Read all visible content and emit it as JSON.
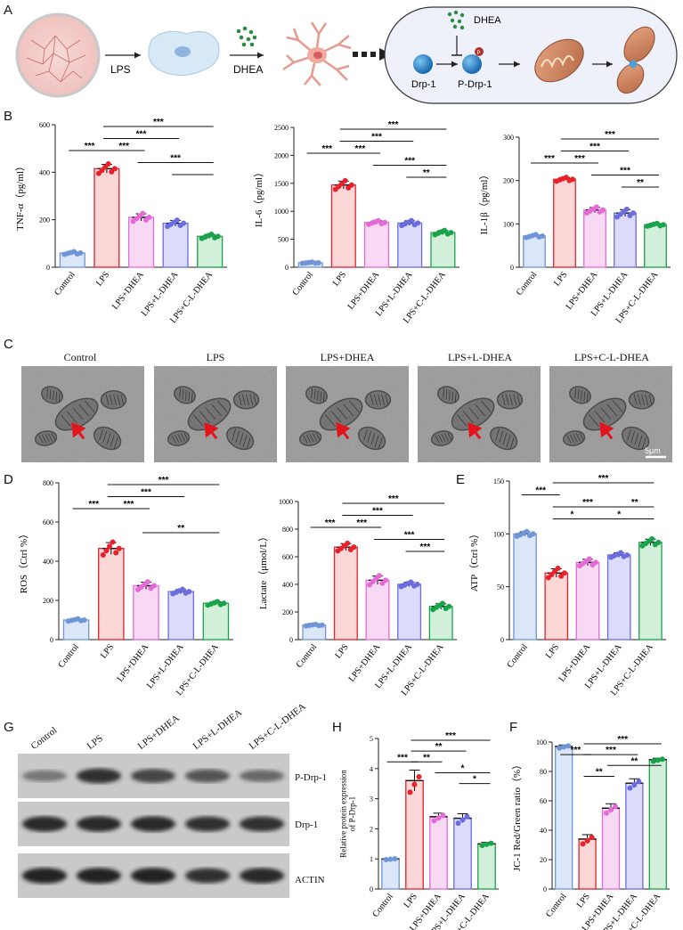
{
  "figure": {
    "panels": {
      "A": "A",
      "B": "B",
      "C": "C",
      "D": "D",
      "E": "E",
      "G": "G",
      "H": "H",
      "F": "F"
    },
    "colors": {
      "control": "#6f95d8",
      "lps": "#e8212b",
      "dhea": "#e56ad7",
      "ldhea": "#6b6ce0",
      "cldhea": "#19a34a"
    }
  },
  "schematic": {
    "lps": "LPS",
    "dhea": "DHEA",
    "dhea_inhibitor": "DHEA",
    "drp1": "Drp-1",
    "pdrp1": "P-Drp-1",
    "phospho": "P"
  },
  "groups": [
    "Control",
    "LPS",
    "LPS+DHEA",
    "LPS+L-DHEA",
    "LPS+C-L-DHEA"
  ],
  "chart_data": [
    {
      "id": "tnf",
      "type": "bar",
      "ylabel": "TNF-α（pg/ml）",
      "ylim": [
        0,
        600
      ],
      "yticks": [
        "0",
        "200",
        "400",
        "600"
      ],
      "categories": [
        "Control",
        "LPS",
        "LPS+DHEA",
        "LPS+L-DHEA",
        "LPS+C-L-DHEA"
      ],
      "values": [
        60,
        415,
        210,
        185,
        130
      ],
      "errors": [
        5,
        18,
        15,
        12,
        8
      ],
      "sig": [
        "***",
        "***",
        "***",
        "***",
        "***"
      ]
    },
    {
      "id": "il6",
      "type": "bar",
      "ylabel": "IL-6（pg/ml）",
      "ylim": [
        0,
        2500
      ],
      "yticks": [
        "0",
        "500",
        "1000",
        "1500",
        "2000",
        "2500"
      ],
      "categories": [
        "Control",
        "LPS",
        "LPS+DHEA",
        "LPS+L-DHEA",
        "LPS+C-L-DHEA"
      ],
      "values": [
        80,
        1470,
        800,
        790,
        620
      ],
      "errors": [
        10,
        70,
        30,
        40,
        35
      ],
      "sig": [
        "***",
        "***",
        "***",
        "***",
        "***",
        "**"
      ]
    },
    {
      "id": "il1b",
      "type": "bar",
      "ylabel": "IL-1β（pg/ml）",
      "ylim": [
        0,
        300
      ],
      "yticks": [
        "0",
        "100",
        "200",
        "300"
      ],
      "categories": [
        "Control",
        "LPS",
        "LPS+DHEA",
        "LPS+L-DHEA",
        "LPS+C-L-DHEA"
      ],
      "values": [
        72,
        203,
        132,
        125,
        98
      ],
      "errors": [
        3,
        4,
        6,
        8,
        3
      ],
      "sig": [
        "***",
        "***",
        "***",
        "***",
        "***",
        "**"
      ]
    },
    {
      "id": "ros",
      "type": "bar",
      "ylabel": "ROS（Ctrl %）",
      "ylim": [
        0,
        800
      ],
      "yticks": [
        "0",
        "200",
        "400",
        "600",
        "800"
      ],
      "categories": [
        "Control",
        "LPS",
        "LPS+DHEA",
        "LPS+L-DHEA",
        "LPS+C-L-DHEA"
      ],
      "values": [
        100,
        465,
        275,
        245,
        185
      ],
      "errors": [
        5,
        30,
        18,
        10,
        8
      ],
      "sig": [
        "***",
        "***",
        "***",
        "***",
        "**"
      ]
    },
    {
      "id": "lactate",
      "type": "bar",
      "ylabel": "Lactate（μmol/L）",
      "ylim": [
        0,
        1000
      ],
      "yticks": [
        "0",
        "200",
        "400",
        "600",
        "800",
        "1000"
      ],
      "categories": [
        "Control",
        "LPS",
        "LPS+DHEA",
        "LPS+L-DHEA",
        "LPS+C-L-DHEA"
      ],
      "values": [
        105,
        670,
        430,
        400,
        240
      ],
      "errors": [
        5,
        25,
        30,
        15,
        20
      ],
      "sig": [
        "***",
        "***",
        "***",
        "***",
        "***",
        "***"
      ]
    },
    {
      "id": "atp",
      "type": "bar",
      "ylabel": "ATP（Ctrl %）",
      "ylim": [
        0,
        150
      ],
      "yticks": [
        "0",
        "50",
        "100",
        "150"
      ],
      "categories": [
        "Control",
        "LPS",
        "LPS+DHEA",
        "LPS+L-DHEA",
        "LPS+C-L-DHEA"
      ],
      "values": [
        100,
        63,
        73,
        80,
        92
      ],
      "errors": [
        2,
        4,
        3,
        2,
        3
      ],
      "sig": [
        "***",
        "*",
        "***",
        "*",
        "**",
        "***"
      ]
    },
    {
      "id": "drp",
      "type": "bar",
      "ylabel": "Relative protein expression of P-Drp-1",
      "ylim": [
        0,
        5
      ],
      "yticks": [
        "0",
        "1",
        "2",
        "3",
        "4",
        "5"
      ],
      "categories": [
        "Control",
        "LPS",
        "LPS+DHEA",
        "LPS+L-DHEA",
        "LPS+C-L-DHEA"
      ],
      "values": [
        1.0,
        3.6,
        2.4,
        2.35,
        1.5
      ],
      "errors": [
        0.02,
        0.35,
        0.12,
        0.15,
        0.05
      ],
      "sig": [
        "***",
        "**",
        "**",
        "*",
        "*",
        "***"
      ]
    },
    {
      "id": "jc1",
      "type": "bar",
      "ylabel": "JC-1 Red/Green ratio（%）",
      "ylim": [
        0,
        100
      ],
      "yticks": [
        "0",
        "20",
        "40",
        "60",
        "80",
        "100"
      ],
      "categories": [
        "Control",
        "LPS",
        "LPS+DHEA",
        "LPS+L-DHEA",
        "LPS+C-L-DHEA"
      ],
      "values": [
        97,
        34,
        55,
        72,
        88
      ],
      "errors": [
        1,
        3,
        3,
        3,
        1
      ],
      "sig": [
        "***",
        "**",
        "***",
        "**",
        "***"
      ]
    }
  ],
  "em": {
    "titles": [
      "Control",
      "LPS",
      "LPS+DHEA",
      "LPS+L-DHEA",
      "LPS+C-L-DHEA"
    ],
    "scale_bar": "5μm"
  },
  "western": {
    "lanes": [
      "Control",
      "LPS",
      "LPS+DHEA",
      "LPS+L-DHEA",
      "LPS+C-L-DHEA"
    ],
    "rows": [
      "P-Drp-1",
      "Drp-1",
      "ACTIN"
    ],
    "intensity": [
      [
        0.35,
        0.85,
        0.7,
        0.6,
        0.45
      ],
      [
        0.9,
        0.9,
        0.9,
        0.85,
        0.85
      ],
      [
        0.95,
        0.95,
        0.95,
        0.85,
        0.9
      ]
    ]
  }
}
